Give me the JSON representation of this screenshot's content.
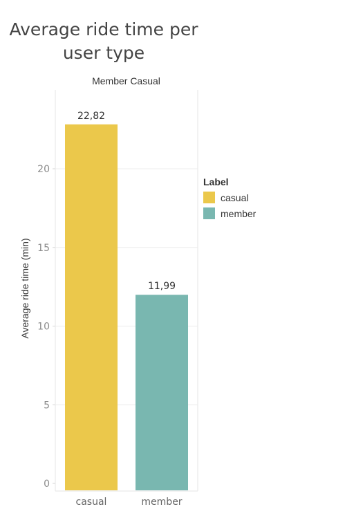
{
  "chart_data": {
    "type": "bar",
    "title": "Average ride time per user type",
    "header": "Member Casual",
    "categories": [
      "casual",
      "member"
    ],
    "values": [
      22.82,
      11.99
    ],
    "value_labels": [
      "22,82",
      "11,99"
    ],
    "colors": [
      "#EBC84B",
      "#79B7B0"
    ],
    "ylabel": "Average ride time (min)",
    "xlabel": "",
    "ylim": [
      0,
      25
    ],
    "yticks": [
      0,
      5,
      10,
      15,
      20
    ],
    "grid": true,
    "legend": {
      "title": "Label",
      "placement": "right",
      "items": [
        {
          "label": "casual",
          "color": "#EBC84B"
        },
        {
          "label": "member",
          "color": "#79B7B0"
        }
      ]
    }
  }
}
